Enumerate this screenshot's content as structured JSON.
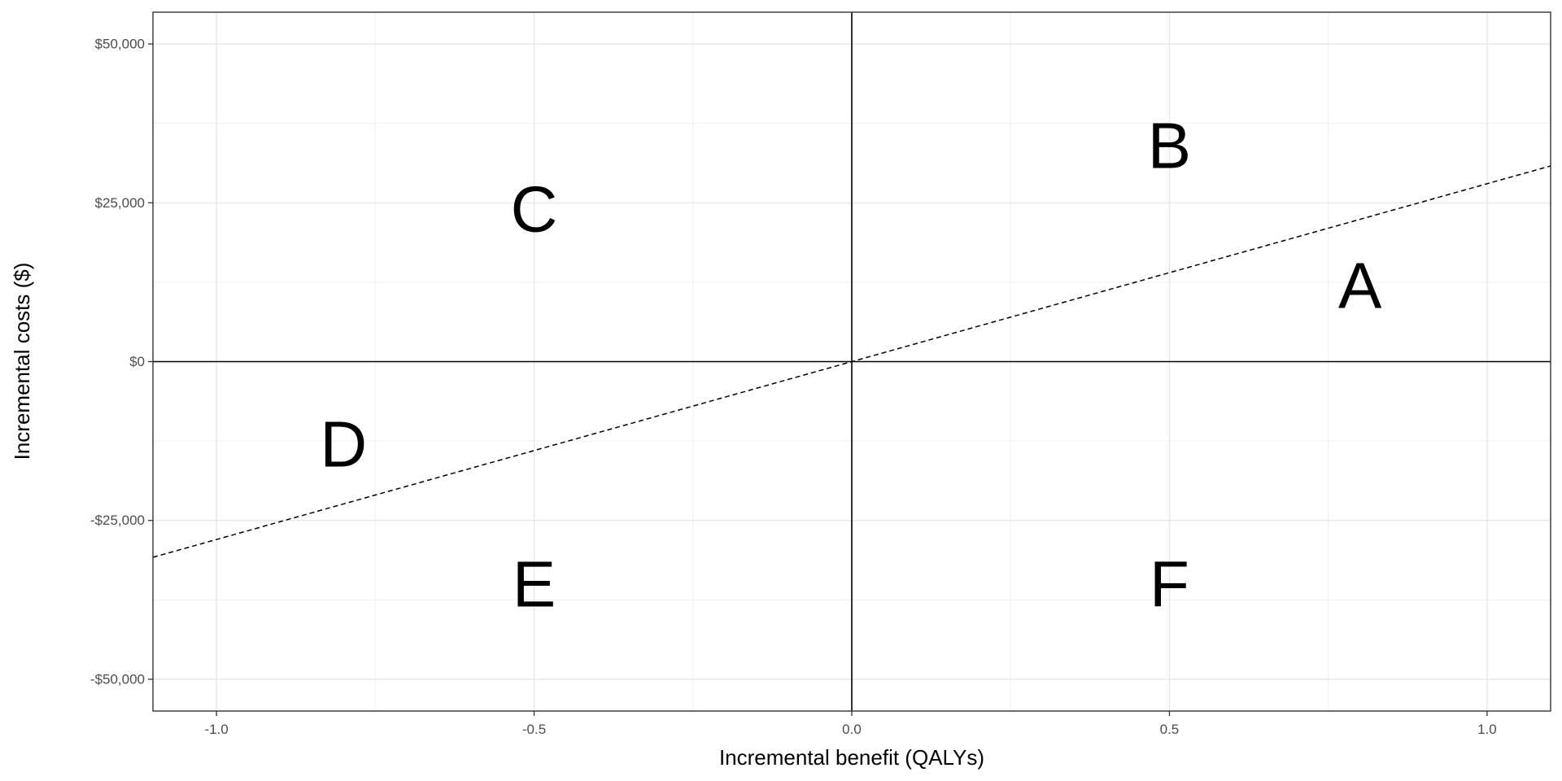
{
  "chart_data": {
    "type": "scatter",
    "title": "",
    "xlabel": "Incremental benefit (QALYs)",
    "ylabel": "Incremental costs ($)",
    "xlim": [
      -1.1,
      1.1
    ],
    "ylim": [
      -55000,
      55000
    ],
    "x_ticks": [
      {
        "value": -1.0,
        "label": "-1.0"
      },
      {
        "value": -0.5,
        "label": "-0.5"
      },
      {
        "value": 0.0,
        "label": "0.0"
      },
      {
        "value": 0.5,
        "label": "0.5"
      },
      {
        "value": 1.0,
        "label": "1.0"
      }
    ],
    "y_ticks": [
      {
        "value": 50000,
        "label": "$50,000"
      },
      {
        "value": 25000,
        "label": "$25,000"
      },
      {
        "value": 0,
        "label": "$0"
      },
      {
        "value": -25000,
        "label": "-$25,000"
      },
      {
        "value": -50000,
        "label": "-$50,000"
      }
    ],
    "x_minor": [
      -0.75,
      -0.25,
      0.25,
      0.75
    ],
    "y_minor": [
      37500,
      12500,
      -12500,
      -37500
    ],
    "grid": true,
    "reference_lines": [
      {
        "type": "vertical",
        "x": 0
      },
      {
        "type": "horizontal",
        "y": 0
      }
    ],
    "threshold_line": {
      "style": "dashed",
      "slope": 28000,
      "intercept": 0
    },
    "annotations": [
      {
        "text": "A",
        "x": 0.8,
        "y": 12000
      },
      {
        "text": "B",
        "x": 0.5,
        "y": 34000
      },
      {
        "text": "C",
        "x": -0.5,
        "y": 24000
      },
      {
        "text": "D",
        "x": -0.8,
        "y": -13000
      },
      {
        "text": "E",
        "x": -0.5,
        "y": -35000
      },
      {
        "text": "F",
        "x": 0.5,
        "y": -35000
      }
    ]
  }
}
